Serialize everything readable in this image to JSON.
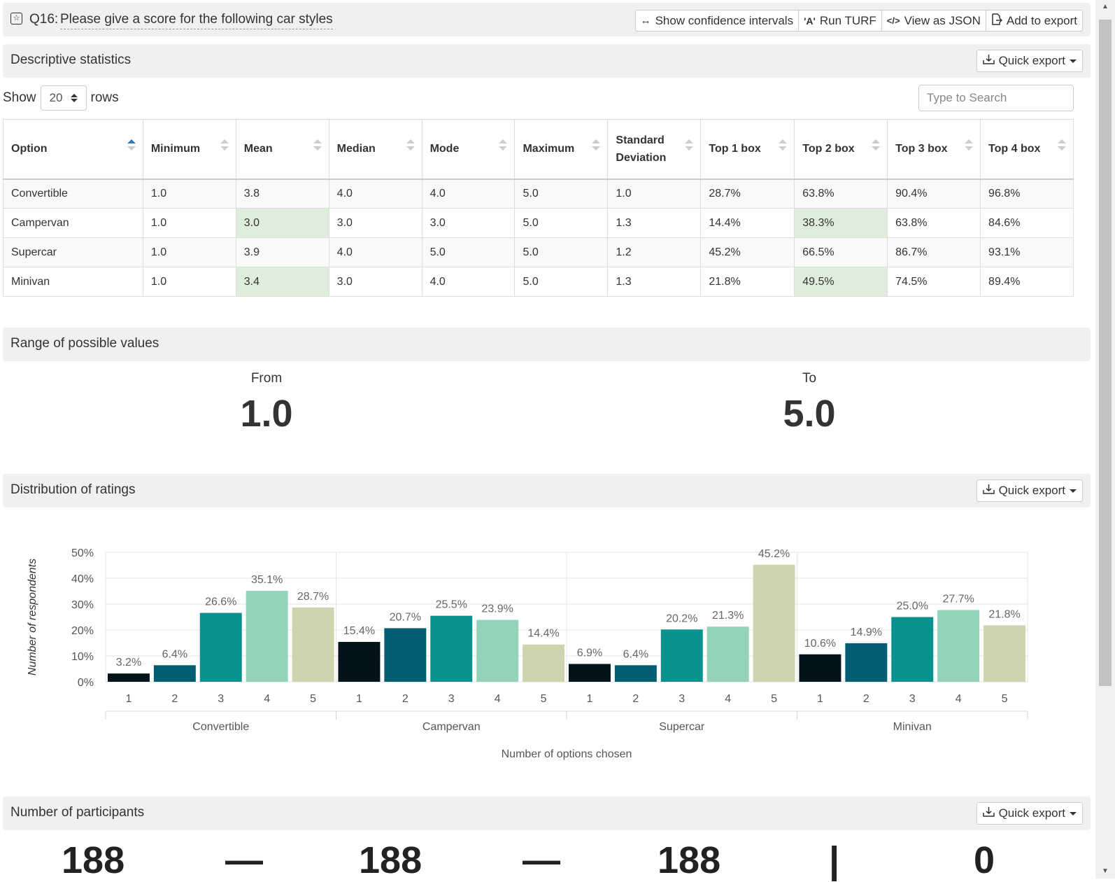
{
  "question": {
    "number": "Q16:",
    "text": "Please give a score for the following car styles",
    "buttons": [
      {
        "icon": "↔",
        "label": "Show confidence intervals"
      },
      {
        "icon": "A",
        "label": "Run TURF"
      },
      {
        "icon": "</>",
        "label": "View as JSON"
      },
      {
        "icon": "export-icon",
        "label": "Add to export"
      }
    ]
  },
  "descriptive": {
    "title": "Descriptive statistics",
    "quick_export": "Quick export",
    "show_label": "Show",
    "rows_value": "20",
    "rows_label": "rows",
    "search_placeholder": "Type to Search",
    "columns": [
      "Option",
      "Minimum",
      "Mean",
      "Median",
      "Mode",
      "Maximum",
      "Standard Deviation",
      "Top 1 box",
      "Top 2 box",
      "Top 3 box",
      "Top 4 box"
    ],
    "rows": [
      [
        "Convertible",
        "1.0",
        "3.8",
        "4.0",
        "4.0",
        "5.0",
        "1.0",
        "28.7%",
        "63.8%",
        "90.4%",
        "96.8%"
      ],
      [
        "Campervan",
        "1.0",
        "3.0",
        "3.0",
        "3.0",
        "5.0",
        "1.3",
        "14.4%",
        "38.3%",
        "63.8%",
        "84.6%"
      ],
      [
        "Supercar",
        "1.0",
        "3.9",
        "4.0",
        "5.0",
        "5.0",
        "1.2",
        "45.2%",
        "66.5%",
        "86.7%",
        "93.1%"
      ],
      [
        "Minivan",
        "1.0",
        "3.4",
        "3.0",
        "4.0",
        "5.0",
        "1.3",
        "21.8%",
        "49.5%",
        "74.5%",
        "89.4%"
      ]
    ],
    "highlight_color": "#dfeedb"
  },
  "range": {
    "title": "Range of possible values",
    "from_label": "From",
    "from_value": "1.0",
    "to_label": "To",
    "to_value": "5.0"
  },
  "distribution": {
    "title": "Distribution of ratings",
    "quick_export": "Quick export"
  },
  "chart_data": {
    "type": "bar",
    "xlabel": "Number of options chosen",
    "ylabel": "Number of respondents",
    "ylim": [
      0,
      50
    ],
    "yticks": [
      "0%",
      "10%",
      "20%",
      "30%",
      "40%",
      "50%"
    ],
    "groups": [
      "Convertible",
      "Campervan",
      "Supercar",
      "Minivan"
    ],
    "categories": [
      "1",
      "2",
      "3",
      "4",
      "5"
    ],
    "colors": [
      "#03131b",
      "#035e74",
      "#0b9090",
      "#95d2ba",
      "#ccd5ae"
    ],
    "series": [
      {
        "group": "Convertible",
        "values": [
          3.2,
          6.4,
          26.6,
          35.1,
          28.7
        ]
      },
      {
        "group": "Campervan",
        "values": [
          15.4,
          20.7,
          25.5,
          23.9,
          14.4
        ]
      },
      {
        "group": "Supercar",
        "values": [
          6.9,
          6.4,
          20.2,
          21.3,
          45.2
        ]
      },
      {
        "group": "Minivan",
        "values": [
          10.6,
          14.9,
          25.0,
          27.7,
          21.8
        ]
      }
    ],
    "grid": true
  },
  "participants": {
    "title": "Number of participants",
    "quick_export": "Quick export",
    "values": [
      "188",
      "—",
      "188",
      "—",
      "188",
      "|",
      "0"
    ]
  }
}
